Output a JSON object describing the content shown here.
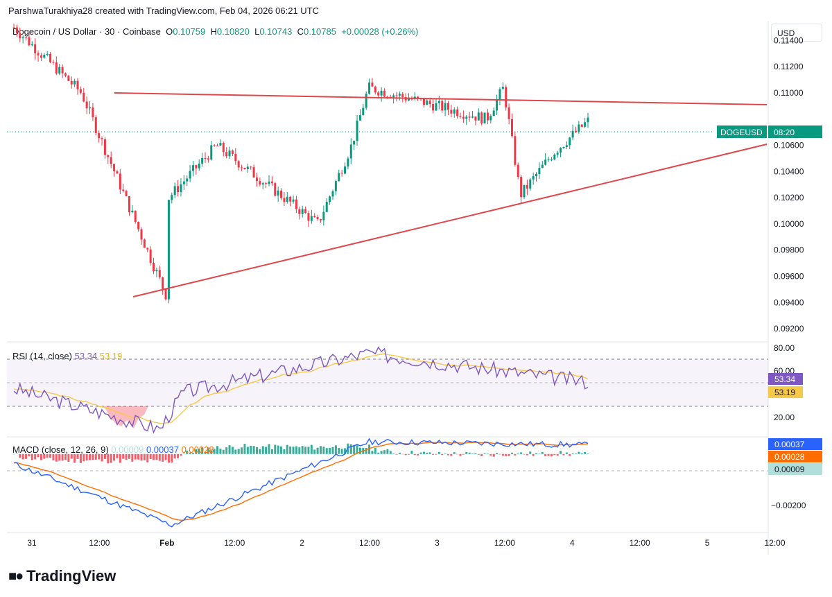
{
  "header": {
    "attribution": "ParshwaTurakhiya28 created with TradingView.com, Feb 04, 2026 06:21 UTC",
    "symbol_line": "Dogecoin / US Dollar · 30 · Coinbase",
    "o_label": "O",
    "o_value": "0.10759",
    "h_label": "H",
    "h_value": "0.10820",
    "l_label": "L",
    "l_value": "0.10743",
    "c_label": "C",
    "c_value": "0.10785",
    "change": "+0.00028 (+0.26%)",
    "currency": "USD"
  },
  "symbol_tag": {
    "name": "DOGEUSD",
    "countdown": "08:20"
  },
  "rsi_legend": {
    "label": "RSI (14, close)",
    "rsi": "53.34",
    "ma": "53.19"
  },
  "macd_legend": {
    "label": "MACD (close, 12, 26, 9)",
    "hist": "0.00009",
    "macd": "0.00037",
    "signal": "0.00028"
  },
  "brand": {
    "name": "TradingView"
  },
  "colors": {
    "up": "#089981",
    "down": "#f23645",
    "trend": "#e0474c",
    "rsi": "#7e57c2",
    "rsi_ma": "#f7c948",
    "macd": "#2962ff",
    "signal": "#ff6d00"
  },
  "chart_data": [
    {
      "type": "candlestick",
      "title": "Dogecoin / US Dollar · 30 · Coinbase",
      "ylim": [
        0.091,
        0.1155
      ],
      "y_ticks": [
        "0.11400",
        "0.11200",
        "0.11000",
        "0.10600",
        "0.10400",
        "0.10200",
        "0.10000",
        "0.09800",
        "0.09600",
        "0.09400",
        "0.09200"
      ],
      "x_ticks": [
        "31",
        "12:00",
        "Feb",
        "12:00",
        "2",
        "12:00",
        "3",
        "12:00",
        "4",
        "12:00",
        "5",
        "12:00"
      ],
      "current_price": 0.10785,
      "key_points": [
        {
          "t": "Jan 31 00:00",
          "price": 0.115
        },
        {
          "t": "Jan 31 12:00",
          "price": 0.11
        },
        {
          "t": "Feb 1 03:00",
          "price": 0.0946
        },
        {
          "t": "Feb 1 03:30",
          "price": 0.102
        },
        {
          "t": "Feb 1 12:00",
          "price": 0.106
        },
        {
          "t": "Feb 2 06:00",
          "price": 0.1
        },
        {
          "t": "Feb 2 12:00",
          "price": 0.106
        },
        {
          "t": "Feb 2 15:00",
          "price": 0.1104
        },
        {
          "t": "Feb 3 12:00",
          "price": 0.108
        },
        {
          "t": "Feb 3 15:00",
          "price": 0.1104
        },
        {
          "t": "Feb 3 18:00",
          "price": 0.1022
        },
        {
          "t": "Feb 4 00:00",
          "price": 0.1055
        },
        {
          "t": "Feb 4 06:00",
          "price": 0.10785
        }
      ],
      "trendlines": [
        {
          "name": "resistance",
          "from": {
            "t": "Jan 31 12:00",
            "price": 0.1108
          },
          "to": {
            "t": "Feb 5 12:00",
            "price": 0.1101
          }
        },
        {
          "name": "support",
          "from": {
            "t": "Feb 1 03:00",
            "price": 0.0946
          },
          "to": {
            "t": "Feb 5 12:00",
            "price": 0.1068
          }
        }
      ]
    },
    {
      "type": "line",
      "title": "RSI (14, close)",
      "ylim": [
        10,
        85
      ],
      "y_ticks": [
        "80.00",
        "60.00",
        "20.00"
      ],
      "bands": [
        70,
        50,
        30
      ],
      "series": [
        {
          "name": "RSI",
          "latest": 53.34
        },
        {
          "name": "MA",
          "latest": 53.19
        }
      ],
      "key_points": [
        {
          "t": "Jan 31 00:00",
          "rsi": 48
        },
        {
          "t": "Feb 1 02:00",
          "rsi": 16
        },
        {
          "t": "Feb 1 06:00",
          "rsi": 45
        },
        {
          "t": "Feb 2 15:00",
          "rsi": 76
        },
        {
          "t": "Feb 4 06:00",
          "rsi": 53.34
        }
      ]
    },
    {
      "type": "line",
      "title": "MACD (close, 12, 26, 9)",
      "ylim": [
        -0.0032,
        0.0007
      ],
      "y_ticks": [
        "−0.00200"
      ],
      "series": [
        {
          "name": "MACD",
          "latest": 0.00037
        },
        {
          "name": "Signal",
          "latest": 0.00028
        },
        {
          "name": "Histogram",
          "latest": 9e-05
        }
      ],
      "key_points": [
        {
          "t": "Feb 1 04:00",
          "macd": -0.0029
        },
        {
          "t": "Feb 2 15:00",
          "macd": 0.0005
        },
        {
          "t": "Feb 4 06:00",
          "macd": 0.00037
        }
      ]
    }
  ],
  "axis_labels": {
    "price": [
      "0.11400",
      "0.11200",
      "0.11000",
      "0.10600",
      "0.10400",
      "0.10200",
      "0.10000",
      "0.09800",
      "0.09600",
      "0.09400",
      "0.09200"
    ],
    "rsi": [
      "80.00",
      "60.00",
      "20.00"
    ],
    "macd": [
      "−0.00200"
    ],
    "time": [
      "31",
      "12:00",
      "Feb",
      "12:00",
      "2",
      "12:00",
      "3",
      "12:00",
      "4",
      "12:00",
      "5",
      "12:00"
    ]
  },
  "badges": {
    "rsi": "53.34",
    "rsi_ma": "53.19",
    "macd": "0.00037",
    "signal": "0.00028",
    "hist": "0.00009"
  }
}
